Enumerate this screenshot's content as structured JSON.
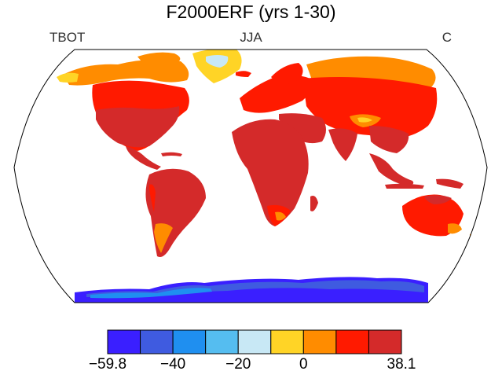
{
  "title": "F2000ERF (yrs 1-30)",
  "left_label": "TBOT",
  "center_label": "JJA",
  "right_label": "C",
  "colorbar": {
    "colors": [
      "#3a1fff",
      "#3f5be0",
      "#1f8ff0",
      "#55bdf0",
      "#c8e8f5",
      "#ffd426",
      "#ff8c00",
      "#ff1a00",
      "#d42a2a"
    ],
    "labels": [
      "−59.8",
      "−40",
      "−20",
      "0",
      "38.1"
    ]
  }
}
